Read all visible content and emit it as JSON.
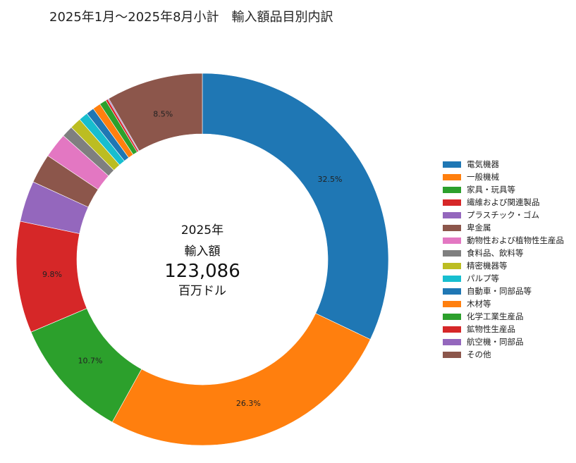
{
  "chart_data": {
    "type": "pie",
    "title": "2025年1月～2025年8月小計　輸入額品目別内訳",
    "center": {
      "year": "2025年",
      "label": "輸入額",
      "value": "123,086",
      "unit": "百万ドル"
    },
    "slices": [
      {
        "name": "電気機器",
        "value": 32.5,
        "color": "#1f77b4",
        "label": "32.5%"
      },
      {
        "name": "一般機械",
        "value": 26.3,
        "color": "#ff7f0e",
        "label": "26.3%"
      },
      {
        "name": "家具・玩具等",
        "value": 10.7,
        "color": "#2ca02c",
        "label": "10.7%"
      },
      {
        "name": "繊維および関連製品",
        "value": 9.8,
        "color": "#d62728",
        "label": "9.8%"
      },
      {
        "name": "プラスチック・ゴム",
        "value": 3.6,
        "color": "#9467bd",
        "label": ""
      },
      {
        "name": "卑金属",
        "value": 2.6,
        "color": "#8c564b",
        "label": ""
      },
      {
        "name": "動物性および植物性生産品",
        "value": 2.2,
        "color": "#e377c2",
        "label": ""
      },
      {
        "name": "食料品、飲料等",
        "value": 1.0,
        "color": "#7f7f7f",
        "label": ""
      },
      {
        "name": "精密機器等",
        "value": 1.0,
        "color": "#bcbd22",
        "label": ""
      },
      {
        "name": "パルプ等",
        "value": 0.8,
        "color": "#17becf",
        "label": ""
      },
      {
        "name": "自動車・同部品等",
        "value": 0.7,
        "color": "#1f77b4",
        "label": ""
      },
      {
        "name": "木材等",
        "value": 0.7,
        "color": "#ff7f0e",
        "label": ""
      },
      {
        "name": "化学工業生産品",
        "value": 0.6,
        "color": "#2ca02c",
        "label": ""
      },
      {
        "name": "鉱物性生産品",
        "value": 0.2,
        "color": "#d62728",
        "label": ""
      },
      {
        "name": "航空機・同部品",
        "value": 0.1,
        "color": "#9467bd",
        "label": ""
      },
      {
        "name": "その他",
        "value": 8.5,
        "color": "#8c564b",
        "label": "8.5%"
      }
    ],
    "legend_position": "right"
  }
}
